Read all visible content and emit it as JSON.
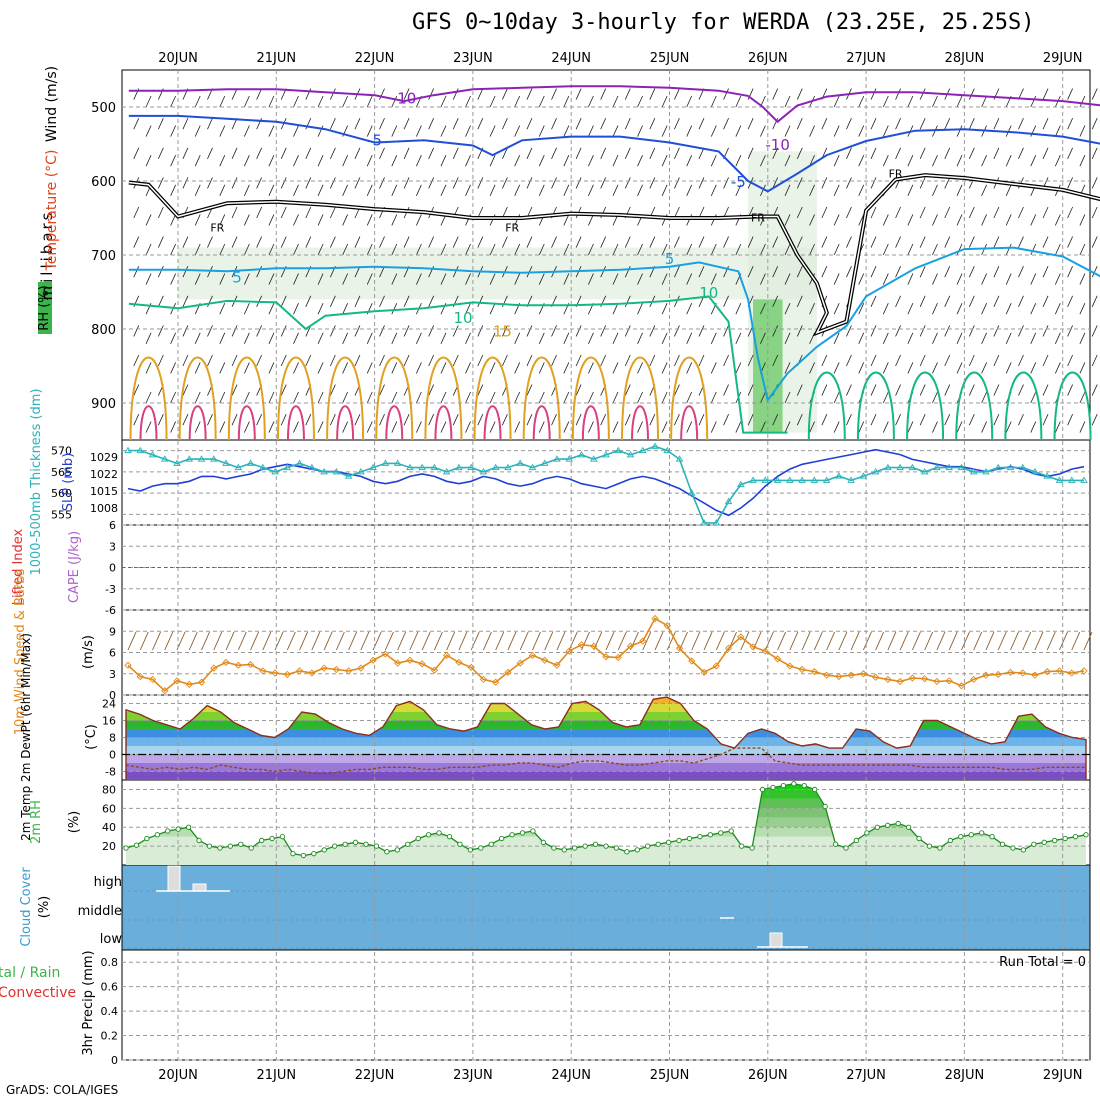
{
  "title": "GFS 0~10day 3-hourly for WERDA (23.25E, 25.25S)",
  "footer": "GrADS: COLA/IGES",
  "colors": {
    "temp_label": "#e0421b",
    "wind_label": "#000000",
    "rh_green": "#3cb44b",
    "thickness": "#2ab3b8",
    "slp": "#1f3fd6",
    "lifted_index": "#e03030",
    "cape": "#b060d0",
    "wind10m": "#e08a1a",
    "temp2m_label": "#000000",
    "cloud_bg": "#6aaedb",
    "precip_total": "#3cb44b",
    "precip_conv": "#e03030",
    "rh2m_line": "#1e8a1e"
  },
  "chart_data": [
    {
      "panel": "upper-air",
      "type": "heatmap",
      "ylabel_parts": [
        "RH (%)",
        "Temperature (°C)",
        "Wind (m/s)"
      ],
      "ylabel_units": "millibars",
      "x_ticks": [
        "20JUN",
        "21JUN",
        "22JUN",
        "23JUN",
        "24JUN",
        "25JUN",
        "26JUN",
        "27JUN",
        "28JUN",
        "29JUN"
      ],
      "y_ticks": [
        500,
        600,
        700,
        800,
        900
      ],
      "ylim": [
        450,
        950
      ],
      "contour_labels": [
        {
          "text": "-10",
          "day": 2.3,
          "p": 495
        },
        {
          "text": "-10",
          "day": 6.1,
          "p": 558
        },
        {
          "text": "-5",
          "day": 2.0,
          "p": 552
        },
        {
          "text": "-5",
          "day": 5.7,
          "p": 608
        },
        {
          "text": "FR",
          "day": 0.4,
          "p": 668
        },
        {
          "text": "FR",
          "day": 3.4,
          "p": 668
        },
        {
          "text": "FR",
          "day": 5.9,
          "p": 655
        },
        {
          "text": "FR",
          "day": 7.3,
          "p": 595
        },
        {
          "text": "5",
          "day": 0.6,
          "p": 737
        },
        {
          "text": "5",
          "day": 5.0,
          "p": 712
        },
        {
          "text": "10",
          "day": 2.9,
          "p": 792
        },
        {
          "text": "10",
          "day": 5.4,
          "p": 758
        },
        {
          "text": "15",
          "day": 3.3,
          "p": 810
        }
      ],
      "series": [
        {
          "name": "-10",
          "days": [
            -0.5,
            0,
            0.5,
            1,
            1.5,
            2,
            2.3,
            2.6,
            3,
            3.5,
            4,
            4.5,
            5,
            5.5,
            5.8,
            5.95,
            6.1,
            6.3,
            6.6,
            7,
            7.5,
            8,
            8.5,
            9,
            9.4
          ],
          "p": [
            478,
            478,
            476,
            476,
            480,
            484,
            492,
            484,
            476,
            474,
            472,
            472,
            474,
            478,
            485,
            500,
            520,
            498,
            486,
            480,
            480,
            484,
            488,
            492,
            498
          ]
        },
        {
          "name": "-5",
          "days": [
            -0.5,
            0,
            0.5,
            1,
            1.5,
            2,
            2.5,
            3,
            3.2,
            3.5,
            4,
            4.5,
            5,
            5.5,
            5.8,
            6,
            6.3,
            6.6,
            7,
            7.5,
            8,
            8.5,
            9,
            9.4
          ],
          "p": [
            512,
            512,
            516,
            520,
            530,
            548,
            545,
            552,
            565,
            545,
            540,
            540,
            548,
            560,
            600,
            614,
            590,
            565,
            546,
            532,
            530,
            534,
            540,
            550
          ]
        },
        {
          "name": "FR",
          "days": [
            -0.5,
            -0.3,
            0,
            0.5,
            1,
            1.5,
            2,
            2.5,
            3,
            3.5,
            4,
            4.5,
            5,
            5.5,
            5.9,
            6.1,
            6.3,
            6.5,
            6.6,
            6.5,
            6.8,
            7,
            7.3,
            7.6,
            8,
            8.5,
            9,
            9.4
          ],
          "p": [
            602,
            605,
            648,
            630,
            628,
            632,
            638,
            642,
            650,
            650,
            644,
            646,
            650,
            650,
            648,
            648,
            700,
            738,
            778,
            805,
            790,
            640,
            598,
            592,
            596,
            604,
            612,
            625
          ]
        },
        {
          "name": "5",
          "days": [
            -0.5,
            0,
            0.5,
            1,
            1.5,
            2,
            2.5,
            3,
            3.5,
            4,
            4.5,
            5,
            5.3,
            5.7,
            5.8,
            5.9,
            6,
            6.2,
            6.5,
            6.8,
            7,
            7.5,
            8,
            8.5,
            9,
            9.4
          ],
          "p": [
            720,
            720,
            722,
            718,
            718,
            716,
            718,
            722,
            724,
            722,
            720,
            716,
            710,
            722,
            760,
            840,
            896,
            860,
            824,
            796,
            756,
            718,
            692,
            690,
            702,
            730
          ]
        },
        {
          "name": "10",
          "days": [
            -0.5,
            0,
            0.5,
            1,
            1.3,
            1.5,
            2,
            2.5,
            3,
            3.5,
            4,
            4.5,
            5,
            5.4,
            5.6,
            5.75,
            5.9,
            6.05,
            6.2
          ],
          "p": [
            766,
            772,
            762,
            764,
            800,
            782,
            776,
            772,
            764,
            768,
            768,
            766,
            762,
            756,
            790,
            940,
            940,
            940,
            940
          ]
        }
      ]
    },
    {
      "panel": "thickness-slp",
      "type": "line",
      "ylabel_left": "1000-500mb Thickness (dm)",
      "ylabel_right": "SLP (mb)",
      "left_ticks": [
        555,
        560,
        565,
        570
      ],
      "right_ticks": [
        1008,
        1015,
        1022,
        1029
      ],
      "series": [
        {
          "name": "SLP (mb)",
          "ylim": [
            1001,
            1036
          ],
          "values": [
            1016,
            1015,
            1017,
            1018,
            1018,
            1019,
            1021,
            1021,
            1020,
            1021,
            1022,
            1024,
            1025,
            1026,
            1025,
            1024,
            1023,
            1023,
            1022,
            1021,
            1019,
            1018,
            1019,
            1021,
            1022,
            1021,
            1019,
            1018,
            1019,
            1021,
            1020,
            1018,
            1017,
            1018,
            1020,
            1021,
            1020,
            1018,
            1017,
            1016,
            1018,
            1020,
            1021,
            1020,
            1018,
            1016,
            1013,
            1010,
            1007,
            1005,
            1008,
            1012,
            1017,
            1021,
            1024,
            1026,
            1027,
            1028,
            1029,
            1030,
            1031,
            1032,
            1031,
            1030,
            1028,
            1027,
            1026,
            1025,
            1025,
            1024,
            1023,
            1024,
            1025,
            1024,
            1022,
            1021,
            1022,
            1024,
            1025
          ]
        },
        {
          "name": "1000-500mb Thickness (dm)",
          "ylim": [
            552.5,
            572.5
          ],
          "values": [
            570,
            570,
            569,
            568,
            567,
            568,
            568,
            568,
            567,
            566,
            567,
            566,
            565,
            566,
            567,
            566,
            565,
            565,
            564,
            565,
            566,
            567,
            567,
            566,
            566,
            566,
            565,
            566,
            566,
            565,
            566,
            566,
            567,
            566,
            567,
            568,
            568,
            569,
            568,
            569,
            570,
            569,
            570,
            571,
            570,
            568,
            560,
            553,
            553,
            558,
            562,
            563,
            563,
            563,
            563,
            563,
            563,
            563,
            564,
            563,
            564,
            565,
            566,
            566,
            566,
            565,
            566,
            566,
            566,
            565,
            565,
            566,
            566,
            566,
            565,
            564,
            563,
            563,
            563
          ]
        }
      ]
    },
    {
      "panel": "lifted-index-cape",
      "type": "line",
      "ylabel_left": "Lifted Index",
      "ylabel_right": "CAPE (J/kg)",
      "left_ticks": [
        "-6",
        "-3",
        "0",
        "3",
        "6"
      ],
      "ylim": [
        -6,
        6
      ],
      "reference_line": 0
    },
    {
      "panel": "wind10m",
      "type": "line",
      "ylabel": "10m Wind Speed & Barbs",
      "units": "(m/s)",
      "y_ticks": [
        0,
        3,
        6,
        9
      ],
      "ylim": [
        0,
        12
      ],
      "series": [
        {
          "name": "10m Wind Speed",
          "values": [
            4.2,
            2.6,
            2.2,
            0.6,
            2.0,
            1.5,
            1.8,
            3.8,
            4.6,
            4.2,
            4.3,
            3.4,
            3.1,
            2.9,
            3.4,
            3.1,
            3.8,
            3.6,
            3.4,
            3.8,
            4.9,
            5.8,
            4.5,
            4.9,
            4.4,
            3.5,
            5.6,
            4.6,
            3.9,
            2.2,
            1.8,
            3.2,
            4.5,
            5.6,
            4.9,
            4.2,
            6.2,
            7.1,
            6.9,
            5.4,
            5.3,
            6.9,
            7.6,
            10.8,
            9.8,
            6.6,
            4.8,
            3.2,
            4.1,
            6.6,
            8.2,
            6.8,
            6.2,
            5.1,
            4.1,
            3.6,
            3.3,
            2.8,
            2.6,
            2.8,
            3.0,
            2.5,
            2.2,
            1.9,
            2.4,
            2.3,
            1.9,
            2.0,
            1.3,
            2.2,
            2.8,
            2.9,
            3.2,
            3.1,
            2.8,
            3.3,
            3.4,
            3.1,
            3.4
          ]
        }
      ]
    },
    {
      "panel": "temp2m",
      "type": "area",
      "ylabel": "2m Temp 2m DewPt (6hr Min/Max)",
      "units": "(°C)",
      "y_ticks": [
        -8,
        0,
        8,
        16,
        24
      ],
      "ylim": [
        -12,
        28
      ],
      "series": [
        {
          "name": "2m Temp",
          "values": [
            21,
            19,
            16,
            14,
            12,
            17,
            23,
            20,
            15,
            12,
            9,
            8,
            12,
            20,
            19,
            15,
            12,
            10,
            9,
            13,
            23,
            25,
            21,
            14,
            12,
            11,
            13,
            24,
            24,
            19,
            14,
            12,
            13,
            24,
            25,
            21,
            15,
            13,
            14,
            26,
            27,
            24,
            16,
            12,
            5,
            3,
            10,
            12,
            10,
            6,
            4,
            5,
            3,
            3,
            12,
            11,
            6,
            3,
            4,
            16,
            16,
            13,
            10,
            7,
            5,
            6,
            18,
            19,
            13,
            10,
            8,
            7
          ]
        },
        {
          "name": "2m DewPt",
          "values": [
            -5,
            -6,
            -7,
            -6,
            -7,
            -6,
            -7,
            -5,
            -6,
            -7,
            -7,
            -8,
            -7,
            -8,
            -9,
            -9,
            -8,
            -7,
            -7,
            -6,
            -6,
            -6,
            -7,
            -7,
            -6,
            -6,
            -6,
            -5,
            -5,
            -4,
            -4,
            -5,
            -6,
            -4,
            -3,
            -3,
            -4,
            -5,
            -5,
            -4,
            -3,
            -3,
            -4,
            -2,
            0,
            3,
            3,
            3,
            -3,
            -4,
            -5,
            -5,
            -5,
            -5,
            -5,
            -5,
            -5,
            -5,
            -5,
            -6,
            -6,
            -6,
            -6,
            -6,
            -6,
            -7,
            -7,
            -7,
            -6,
            -6,
            -6,
            -6
          ]
        }
      ]
    },
    {
      "panel": "rh2m",
      "type": "area",
      "ylabel": "2m RH",
      "units": "(%)",
      "y_ticks": [
        20,
        40,
        60,
        80
      ],
      "ylim": [
        0,
        90
      ],
      "series": [
        {
          "name": "2m RH",
          "values": [
            18,
            21,
            28,
            32,
            36,
            38,
            40,
            26,
            20,
            18,
            20,
            22,
            18,
            26,
            28,
            30,
            12,
            10,
            12,
            16,
            20,
            22,
            24,
            22,
            20,
            14,
            16,
            22,
            28,
            32,
            34,
            30,
            22,
            16,
            18,
            22,
            28,
            32,
            34,
            36,
            24,
            18,
            16,
            18,
            20,
            22,
            20,
            18,
            14,
            16,
            20,
            22,
            24,
            26,
            28,
            30,
            32,
            34,
            36,
            20,
            18,
            80,
            82,
            84,
            86,
            84,
            80,
            62,
            22,
            18,
            26,
            34,
            40,
            42,
            44,
            40,
            28,
            20,
            18,
            26,
            30,
            32,
            34,
            30,
            22,
            18,
            16,
            22,
            24,
            26,
            28,
            30,
            32
          ]
        }
      ]
    },
    {
      "panel": "cloud-cover",
      "type": "bar",
      "ylabel": "Cloud Cover",
      "units": "(%)",
      "categories": [
        "high",
        "middle",
        "low"
      ]
    },
    {
      "panel": "precip",
      "type": "bar",
      "ylabel_parts": [
        "Total / Rain",
        "Convective"
      ],
      "ylabel_visible": [
        "tal / Rain",
        "Convective"
      ],
      "ylabel_axis": "3hr Precip (mm)",
      "y_ticks": [
        "0",
        "0.2",
        "0.4",
        "0.6",
        "0.8"
      ],
      "ylim": [
        0,
        0.9
      ],
      "run_total": "Run Total = 0"
    }
  ]
}
